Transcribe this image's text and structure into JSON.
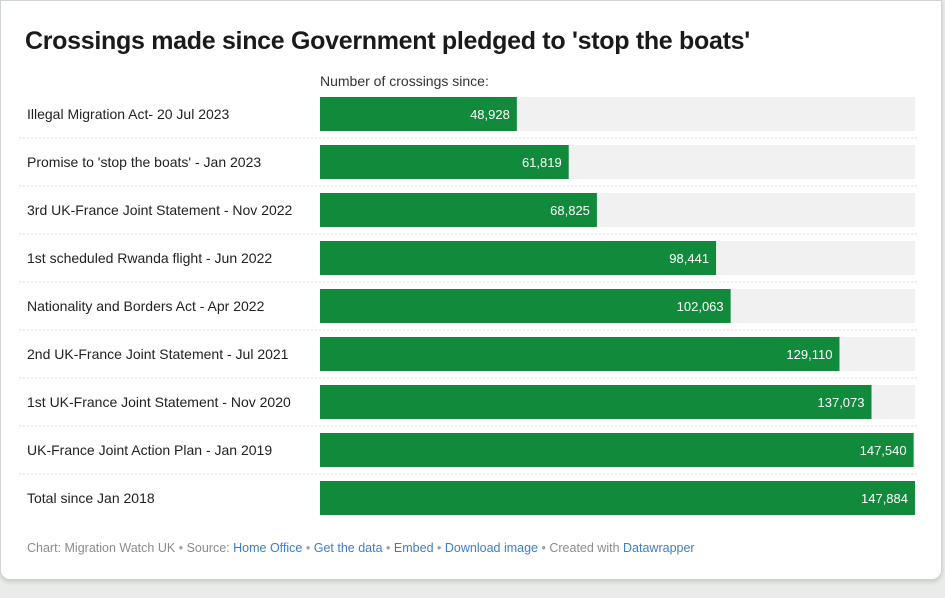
{
  "title": "Crossings made since Government pledged to 'stop the boats'",
  "subtitle": "Number of crossings since:",
  "colors": {
    "bar": "#128a3c",
    "track": "#f1f1f1",
    "divider": "#dcdcdc",
    "link": "#3d7fc4"
  },
  "chart_data": {
    "type": "bar",
    "orientation": "horizontal",
    "title": "Crossings made since Government pledged to 'stop the boats'",
    "xlabel": "Number of crossings since:",
    "ylabel": "",
    "xlim": [
      0,
      147884
    ],
    "categories": [
      "Illegal Migration Act- 20 Jul 2023",
      "Promise to 'stop the boats' - Jan 2023",
      "3rd UK-France Joint Statement - Nov 2022",
      "1st scheduled Rwanda flight - Jun 2022",
      "Nationality and Borders Act - Apr 2022",
      "2nd UK-France Joint Statement - Jul 2021",
      "1st UK-France Joint Statement - Nov 2020",
      "UK-France Joint Action Plan - Jan 2019",
      "Total since Jan 2018"
    ],
    "values": [
      48928,
      61819,
      68825,
      98441,
      102063,
      129110,
      137073,
      147540,
      147884
    ],
    "value_labels": [
      "48,928",
      "61,819",
      "68,825",
      "98,441",
      "102,063",
      "129,110",
      "137,073",
      "147,540",
      "147,884"
    ]
  },
  "footer": {
    "chart_prefix": "Chart: Migration Watch UK",
    "source_prefix": "Source:",
    "source_link": "Home Office",
    "get_data": "Get the data",
    "embed": "Embed",
    "download": "Download image",
    "created_prefix": "Created with",
    "created_link": "Datawrapper",
    "sep": "•"
  }
}
